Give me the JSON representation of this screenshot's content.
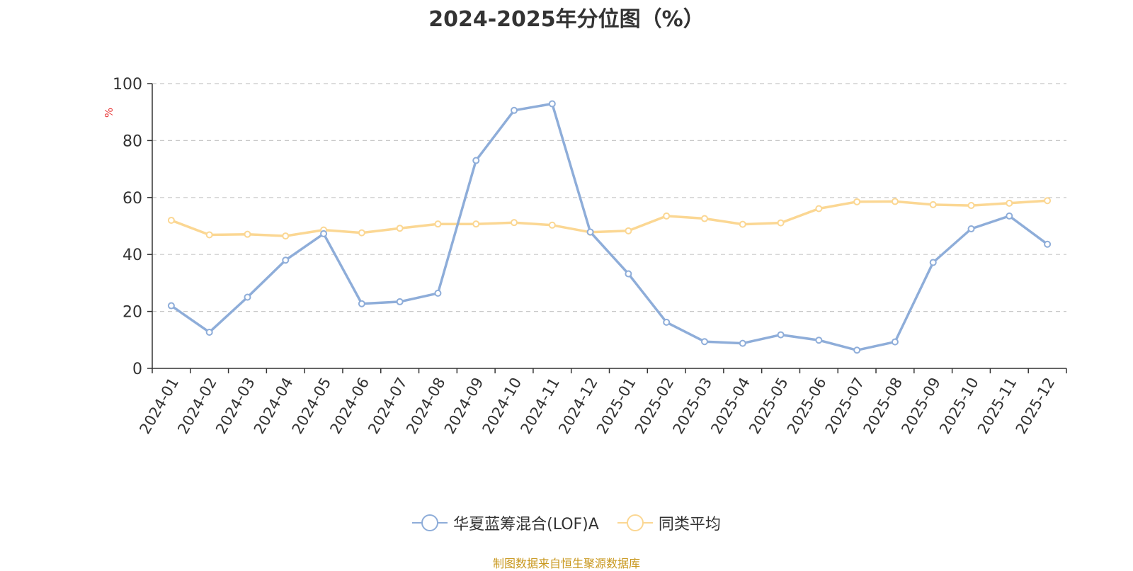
{
  "chart_data": {
    "type": "line",
    "title": "2024-2025年分位图（%）",
    "ylabel": "%",
    "ylim": [
      0,
      100
    ],
    "yticks": [
      0,
      20,
      40,
      60,
      80,
      100
    ],
    "categories": [
      "2024-01",
      "2024-02",
      "2024-03",
      "2024-04",
      "2024-05",
      "2024-06",
      "2024-07",
      "2024-08",
      "2024-09",
      "2024-10",
      "2024-11",
      "2024-12",
      "2025-01",
      "2025-02",
      "2025-03",
      "2025-04",
      "2025-05",
      "2025-06",
      "2025-07",
      "2025-08",
      "2025-09",
      "2025-10",
      "2025-11",
      "2025-12"
    ],
    "series": [
      {
        "name": "华夏蓝筹混合(LOF)A",
        "color": "#8eadd9",
        "values": [
          22,
          12.7,
          25,
          38,
          47.3,
          22.7,
          23.4,
          26.4,
          73,
          90.6,
          92.9,
          47.9,
          33.2,
          16.2,
          9.4,
          8.8,
          11.8,
          9.9,
          6.4,
          9.3,
          37.2,
          49,
          53.5,
          43.6
        ]
      },
      {
        "name": "同类平均",
        "color": "#fbd793",
        "values": [
          52,
          46.9,
          47.1,
          46.5,
          48.6,
          47.6,
          49.2,
          50.7,
          50.7,
          51.2,
          50.3,
          47.8,
          48.3,
          53.5,
          52.6,
          50.6,
          51.1,
          56.1,
          58.5,
          58.6,
          57.5,
          57.2,
          58,
          58.9
        ]
      }
    ],
    "grid": true,
    "legend": "bottom"
  },
  "source": "制图数据来自恒生聚源数据库"
}
